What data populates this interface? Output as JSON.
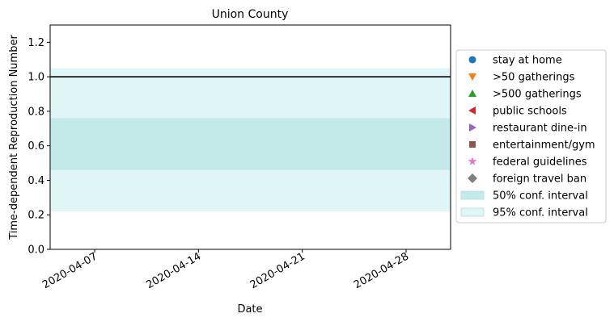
{
  "chart_data": {
    "type": "line",
    "title": "Union County",
    "xlabel": "Date",
    "ylabel": "Time-dependent Reproduction Number",
    "x_range": [
      "2020-04-04",
      "2020-05-01"
    ],
    "ylim": [
      0,
      1.3
    ],
    "x_ticks": [
      "2020-04-07",
      "2020-04-14",
      "2020-04-21",
      "2020-04-28"
    ],
    "y_ticks": [
      "0.0",
      "0.2",
      "0.4",
      "0.6",
      "0.8",
      "1.0",
      "1.2"
    ],
    "y_tick_values": [
      0.0,
      0.2,
      0.4,
      0.6,
      0.8,
      1.0,
      1.2
    ],
    "grid": false,
    "legend_position": "right",
    "reference_line": {
      "y": 1.0,
      "color": "#000000"
    },
    "bands": [
      {
        "name": "95% conf. interval",
        "y_low": 0.22,
        "y_high": 1.05,
        "color": "#e0f5f5"
      },
      {
        "name": "50% conf. interval",
        "y_low": 0.46,
        "y_high": 0.76,
        "color": "#c4e9e9"
      }
    ],
    "legend": [
      {
        "label": "stay at home",
        "marker": "circle",
        "color": "#1f77b4"
      },
      {
        "label": ">50 gatherings",
        "marker": "triangle-down",
        "color": "#ff7f0e"
      },
      {
        "label": ">500 gatherings",
        "marker": "triangle-up",
        "color": "#2ca02c"
      },
      {
        "label": "public schools",
        "marker": "triangle-left",
        "color": "#d62728"
      },
      {
        "label": "restaurant dine-in",
        "marker": "triangle-right",
        "color": "#9467bd"
      },
      {
        "label": "entertainment/gym",
        "marker": "square",
        "color": "#8c564b"
      },
      {
        "label": "federal guidelines",
        "marker": "star",
        "color": "#e377c2"
      },
      {
        "label": "foreign travel ban",
        "marker": "diamond",
        "color": "#7f7f7f"
      },
      {
        "label": "50% conf. interval",
        "marker": "patch",
        "color": "#c4e9e9"
      },
      {
        "label": "95% conf. interval",
        "marker": "patch",
        "color": "#e0f5f5"
      }
    ]
  }
}
